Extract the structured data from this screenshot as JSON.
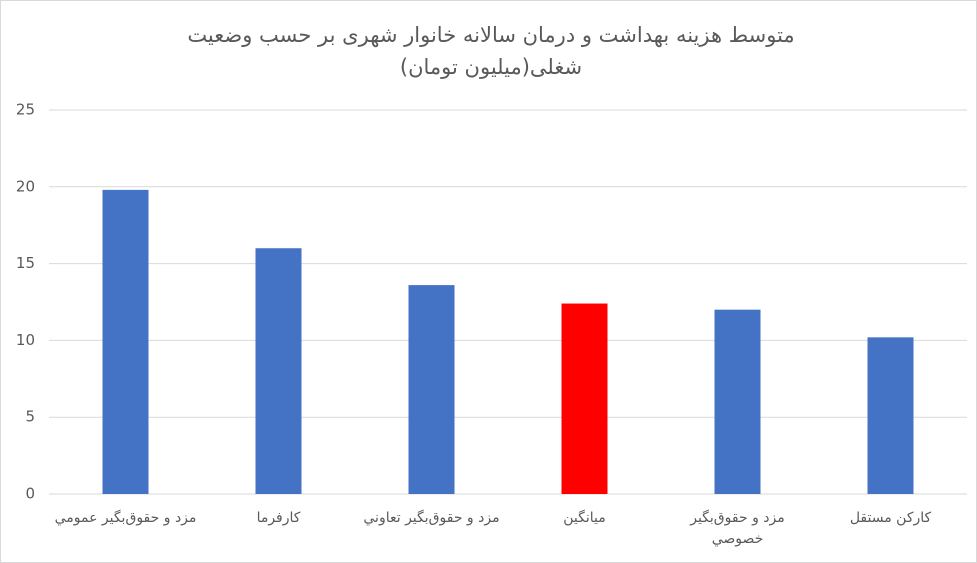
{
  "chart_data": {
    "type": "bar",
    "title": "متوسط هزینه بهداشت و درمان سالانه خانوار شهری بر حسب وضعیت شغلی(میلیون تومان)",
    "categories": [
      "مزد و حقوق‌بگیر عمومي",
      "کارفرما",
      "مزد و حقوق‌بگیر تعاوني",
      "میانگین",
      "مزد و حقوق‌بگیر خصوصي",
      "کارکن مستقل"
    ],
    "values": [
      19.8,
      16,
      13.6,
      12.4,
      12,
      10.2
    ],
    "colors": [
      "#4472c4",
      "#4472c4",
      "#4472c4",
      "#ff0000",
      "#4472c4",
      "#4472c4"
    ],
    "ylim": [
      0,
      25
    ],
    "yticks": [
      0,
      5,
      10,
      15,
      20,
      25
    ],
    "grid": true
  }
}
